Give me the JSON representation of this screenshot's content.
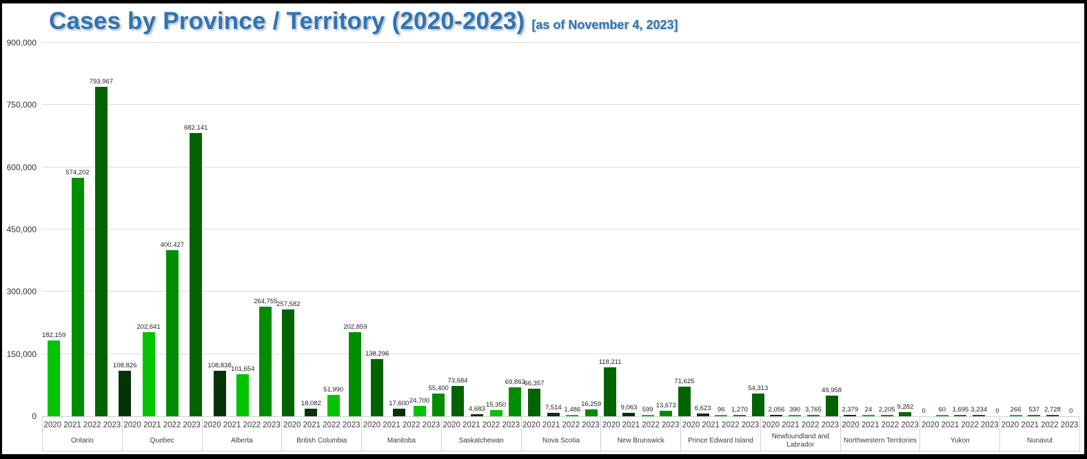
{
  "header": {
    "title": "Cases by Province / Territory (2020-2023)",
    "subtitle": "[as of November 4, 2023]",
    "title_color": "#2E74B5"
  },
  "chart_data": {
    "type": "bar",
    "title": "Cases by Province / Territory (2020-2023)",
    "subtitle": "[as of November 4, 2023]",
    "xlabel": "",
    "ylabel": "",
    "ylim": [
      0,
      900000
    ],
    "ytick_interval": 150000,
    "ytick_labels": [
      "0",
      "150,000",
      "300,000",
      "450,000",
      "600,000",
      "750,000",
      "900,000"
    ],
    "grid": true,
    "legend_position": "none",
    "value_labels": true,
    "years": [
      "2020",
      "2021",
      "2022",
      "2023"
    ],
    "year_colors": [
      "#00C400",
      "#008E00",
      "#016401",
      "#063306"
    ],
    "groups": [
      {
        "province": "Ontario",
        "values": [
          182159,
          574202,
          793967,
          108826
        ]
      },
      {
        "province": "Quebec",
        "values": [
          202641,
          400427,
          682141,
          108838
        ]
      },
      {
        "province": "Alberta",
        "values": [
          101654,
          264755,
          257582,
          18082
        ]
      },
      {
        "province": "British Columbia",
        "values": [
          51990,
          202859,
          138296,
          17600
        ]
      },
      {
        "province": "Manitoba",
        "values": [
          24700,
          55400,
          73684,
          4683
        ]
      },
      {
        "province": "Saskatchewan",
        "values": [
          15350,
          69863,
          66357,
          7514
        ]
      },
      {
        "province": "Nova Scotia",
        "values": [
          1486,
          16259,
          118211,
          9063
        ]
      },
      {
        "province": "New Brunswick",
        "values": [
          599,
          13673,
          71625,
          6623
        ]
      },
      {
        "province": "Prince Edward Island",
        "values": [
          96,
          1270,
          54313,
          2056
        ]
      },
      {
        "province": "Newfoundland and Labrador",
        "values": [
          390,
          3765,
          49958,
          2379
        ]
      },
      {
        "province": "Northwestern Territories",
        "values": [
          24,
          2205,
          9282,
          0
        ]
      },
      {
        "province": "Yukon",
        "values": [
          60,
          1695,
          3234,
          0
        ]
      },
      {
        "province": "Nunavut",
        "values": [
          266,
          537,
          2728,
          0
        ]
      }
    ]
  }
}
